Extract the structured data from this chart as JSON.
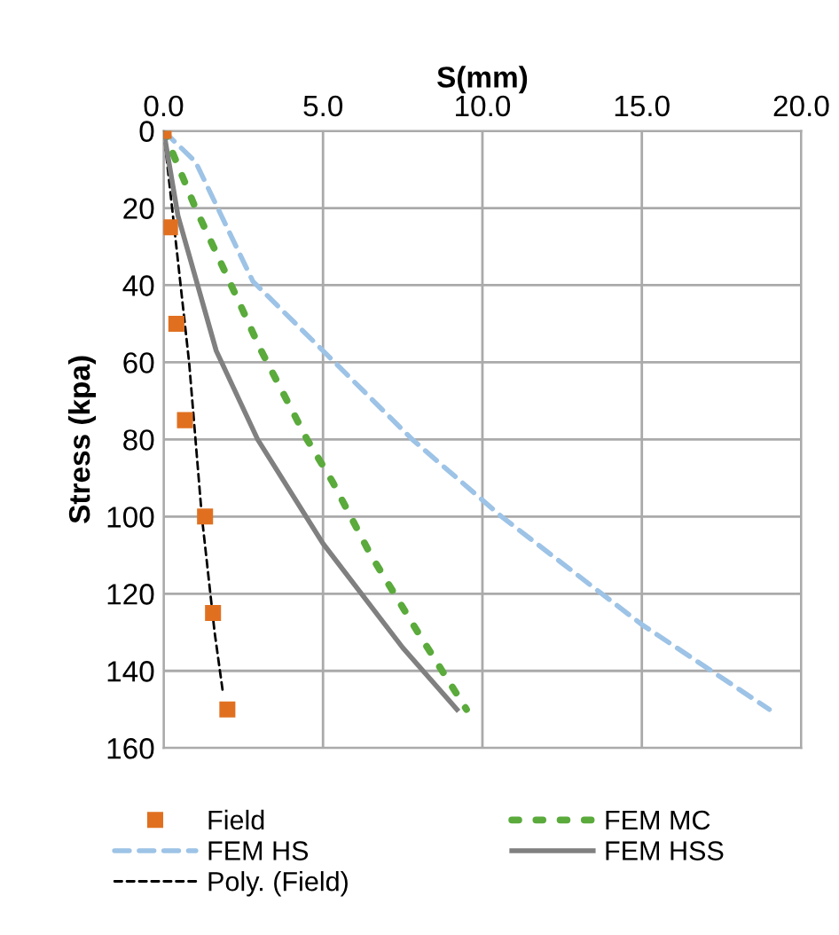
{
  "chart_data": {
    "type": "line",
    "xlabel": "S(mm)",
    "ylabel": "Stress (kpa)",
    "xlim": [
      0,
      20
    ],
    "xticks": [
      {
        "value": 0,
        "label": "0.0"
      },
      {
        "value": 5,
        "label": "5.0"
      },
      {
        "value": 10,
        "label": "10.0"
      },
      {
        "value": 15,
        "label": "15.0"
      },
      {
        "value": 20,
        "label": "20.0"
      }
    ],
    "ylim": [
      160,
      0
    ],
    "yticks": [
      0,
      20,
      40,
      60,
      80,
      100,
      120,
      140,
      160
    ],
    "grid": true,
    "legend": "bottom",
    "series": [
      {
        "name": "Field",
        "type": "scatter",
        "marker": "square",
        "color": "#e07020",
        "x": [
          0,
          0.2,
          0.4,
          0.67,
          1.3,
          1.55,
          2.0
        ],
        "values": [
          0,
          25,
          50,
          75,
          100,
          125,
          150
        ]
      },
      {
        "name": "FEM HS",
        "line_style": "dashed",
        "color": "#9dc3e6",
        "x": [
          0,
          1,
          2.8,
          5,
          7.8,
          10.6,
          15,
          19
        ],
        "values": [
          0,
          8,
          39,
          57,
          80,
          100,
          128,
          150
        ]
      },
      {
        "name": "Poly. (Field)",
        "line_style": "dashed",
        "color": "#000000",
        "x": [
          0,
          0.4,
          0.8,
          1.2,
          1.6,
          1.85
        ],
        "values": [
          0,
          30,
          60,
          100,
          130,
          145
        ]
      },
      {
        "name": "FEM MC",
        "line_style": "dotted",
        "color": "#5aaa3c",
        "x": [
          0,
          1,
          2.4,
          3.0,
          4.5,
          5.3,
          6.5,
          8.05,
          9.5
        ],
        "values": [
          0,
          20,
          45,
          56,
          80,
          91,
          110,
          131,
          150
        ]
      },
      {
        "name": "FEM HSS",
        "line_style": "solid",
        "color": "#808080",
        "x": [
          0,
          0.45,
          1.65,
          2.95,
          5.0,
          7.5,
          9.2
        ],
        "values": [
          0,
          22,
          57,
          80,
          107,
          134,
          150
        ]
      }
    ]
  }
}
